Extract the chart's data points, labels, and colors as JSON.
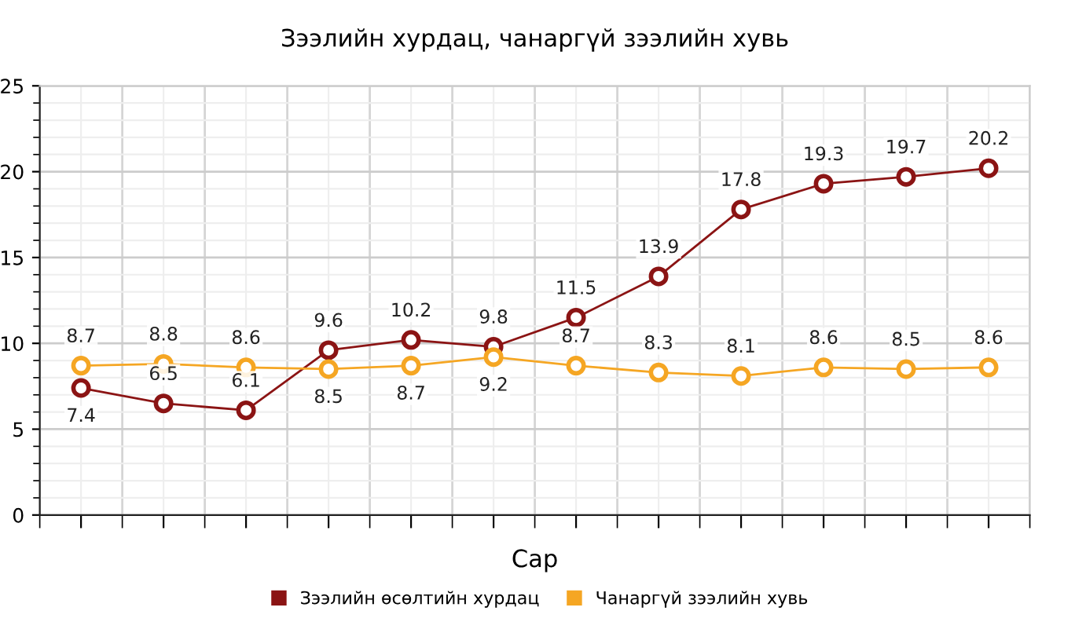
{
  "chart_data": {
    "type": "line",
    "title": "Зээлийн хурдац, чанаргүй зээлийн хувь",
    "xlabel": "Сар",
    "categories": [
      null,
      null,
      null,
      null,
      null,
      null,
      null,
      null,
      null,
      null,
      null,
      null
    ],
    "series": [
      {
        "name": "Зээлийн өсөлтийн хурдац",
        "color": "#8b1414",
        "values": [
          7.4,
          6.5,
          6.1,
          9.6,
          10.2,
          9.8,
          11.5,
          13.9,
          17.8,
          19.3,
          19.7,
          20.2
        ]
      },
      {
        "name": "Чанаргүй зээлийн хувь",
        "color": "#f5a623",
        "values": [
          8.7,
          8.8,
          8.6,
          8.5,
          8.7,
          9.2,
          8.7,
          8.3,
          8.1,
          8.6,
          8.5,
          8.6
        ]
      }
    ],
    "ylim": [
      0,
      25
    ],
    "yticks": [
      0,
      5,
      10,
      15,
      20,
      25
    ],
    "grid": true,
    "legend": "bottom",
    "marker": "circle",
    "line_style": "solid",
    "data_labels": true
  }
}
